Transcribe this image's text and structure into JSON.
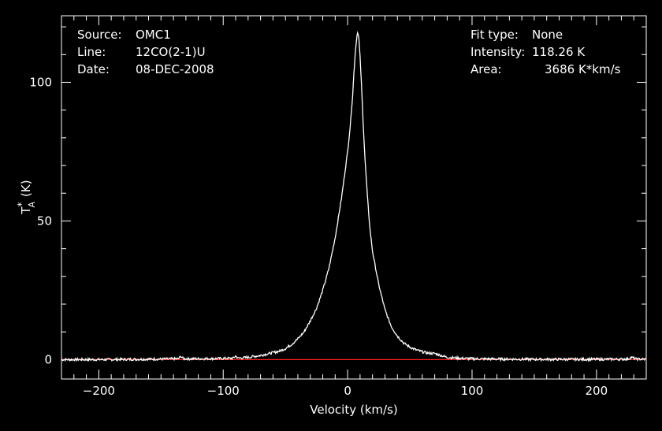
{
  "header_left": {
    "rows": [
      {
        "label": "Source:",
        "value": "OMC1"
      },
      {
        "label": "Line:",
        "value": "12CO(2-1)U"
      },
      {
        "label": "Date:",
        "value": "08-DEC-2008"
      }
    ]
  },
  "header_right": {
    "rows": [
      {
        "label": "Fit type:",
        "value": "None"
      },
      {
        "label": "Intensity:",
        "value": "118.26 K"
      },
      {
        "label": "Area:",
        "value": "3686 K*km/s"
      }
    ]
  },
  "colors": {
    "background": "#000000",
    "foreground": "#ffffff",
    "baseline": "#ff2020"
  },
  "chart_data": {
    "type": "line",
    "xlabel": "Velocity (km/s)",
    "ylabel_main": "T",
    "ylabel_sup": "*",
    "ylabel_sub": "A",
    "ylabel_unit": "(K)",
    "xlim": [
      -230,
      240
    ],
    "ylim": [
      -7,
      124
    ],
    "x_ticks": [
      -200,
      -100,
      0,
      100,
      200
    ],
    "x_tick_labels": [
      "−200",
      "−100",
      "0",
      "100",
      "200"
    ],
    "y_ticks": [
      0,
      50,
      100
    ],
    "y_tick_labels": [
      "0",
      "50",
      "100"
    ],
    "baseline_y": 0,
    "series": [
      {
        "x": [
          -230,
          -200,
          -150,
          -136,
          -134,
          -132,
          -120,
          -100,
          -92,
          -90,
          -88,
          -80,
          -70,
          -60,
          -55,
          -50,
          -45,
          -40,
          -35,
          -30,
          -25,
          -20,
          -15,
          -10,
          -5,
          0,
          2,
          4,
          5,
          6,
          7,
          8,
          9,
          10,
          11,
          12,
          14,
          16,
          18,
          20,
          25,
          30,
          35,
          40,
          45,
          50,
          55,
          60,
          65,
          70,
          75,
          80,
          90,
          100,
          120,
          150,
          200,
          225,
          228,
          232,
          240
        ],
        "y": [
          0,
          0,
          0.2,
          0.3,
          1.2,
          0.3,
          0.3,
          0.4,
          0.5,
          1.3,
          0.5,
          0.8,
          1.5,
          2.5,
          3.0,
          4.0,
          5.5,
          7.5,
          10,
          14,
          18.5,
          25,
          33,
          44,
          58,
          75,
          84,
          95,
          103,
          110,
          115,
          118.26,
          116,
          109,
          100,
          90,
          72,
          58,
          47,
          39,
          27,
          18,
          12,
          8.5,
          6,
          4.5,
          3.5,
          2.8,
          2.3,
          2.2,
          1.5,
          0.8,
          0.5,
          0.3,
          0.2,
          0.1,
          0.1,
          0.2,
          0.8,
          0.2,
          0.1
        ]
      }
    ]
  }
}
